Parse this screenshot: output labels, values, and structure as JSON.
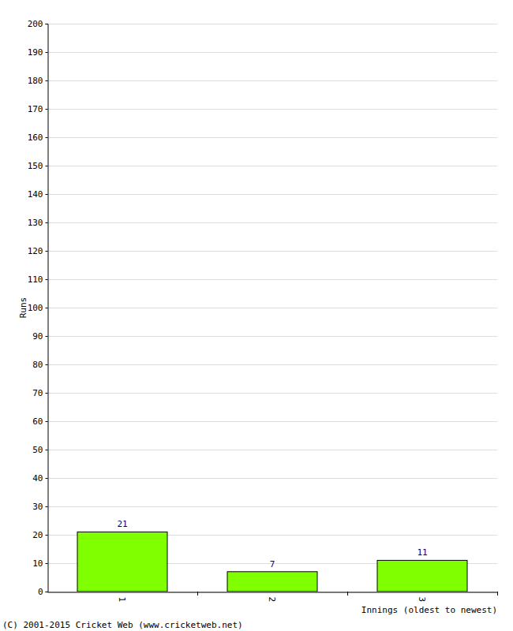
{
  "chart_data": {
    "type": "bar",
    "x_label": "Innings (oldest to newest)",
    "y_label": "Runs",
    "annotations": [
      "(C) 2001-2015 Cricket Web (www.cricketweb.net)"
    ],
    "categories": [
      "1",
      "2",
      "3"
    ],
    "values": [
      21,
      7,
      11
    ],
    "color": "#80ff00",
    "ylim": [
      0,
      200
    ],
    "yticks": [
      0,
      10,
      20,
      30,
      40,
      50,
      60,
      70,
      80,
      90,
      100,
      110,
      120,
      130,
      140,
      150,
      160,
      170,
      180,
      190,
      200
    ],
    "grid": true,
    "data_labels": true
  }
}
